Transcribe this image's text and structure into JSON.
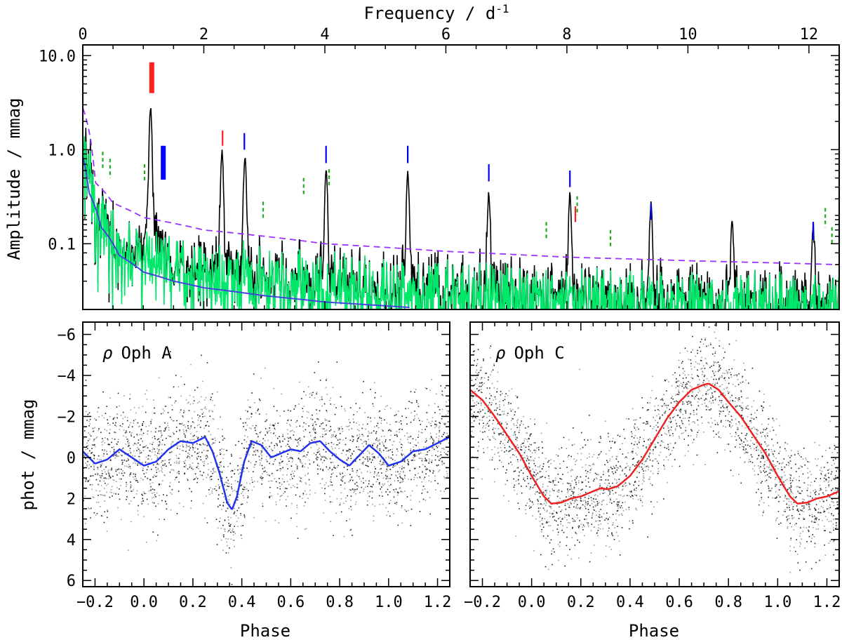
{
  "chart_data": [
    {
      "type": "line",
      "panel": "amplitude-spectrum",
      "xlabel": "Frequency / d",
      "xlabel_sup": "-1",
      "ylabel": "Amplitude / mmag",
      "xlim": [
        0,
        12.5
      ],
      "ylim": [
        0.02,
        13
      ],
      "yscale": "log",
      "x_ticks": [
        0,
        2,
        4,
        6,
        8,
        10,
        12
      ],
      "y_tick_labels": [
        {
          "value": 10,
          "label": "10.0"
        },
        {
          "value": 1,
          "label": "1.0"
        },
        {
          "value": 0.1,
          "label": "0.1"
        }
      ],
      "peaks": [
        {
          "f": 1.12,
          "a": 2.6
        },
        {
          "f": 2.3,
          "a": 0.88
        },
        {
          "f": 2.68,
          "a": 0.75
        },
        {
          "f": 4.02,
          "a": 0.55
        },
        {
          "f": 5.37,
          "a": 0.52
        },
        {
          "f": 6.71,
          "a": 0.3
        },
        {
          "f": 8.05,
          "a": 0.29
        },
        {
          "f": 9.39,
          "a": 0.22
        },
        {
          "f": 10.73,
          "a": 0.15
        },
        {
          "f": 12.07,
          "a": 0.12
        }
      ],
      "series": [
        {
          "name": "spectrum",
          "color": "#000000"
        },
        {
          "name": "residual spectrum",
          "color": "#00e86a"
        },
        {
          "name": "significance threshold",
          "color": "#9933ff",
          "style": "dashed",
          "x": [
            0,
            0.2,
            0.5,
            1.0,
            2.0,
            4.0,
            6.0,
            8.0,
            10.0,
            12.5
          ],
          "values": [
            2.8,
            0.45,
            0.27,
            0.19,
            0.14,
            0.1,
            0.083,
            0.072,
            0.066,
            0.06
          ]
        },
        {
          "name": "noise level",
          "color": "#4444dd",
          "style": "solid",
          "x": [
            0,
            0.1,
            0.3,
            0.6,
            1.0,
            1.5,
            2.0,
            3.0,
            4.0,
            5.4
          ],
          "values": [
            0.85,
            0.35,
            0.15,
            0.075,
            0.05,
            0.04,
            0.034,
            0.028,
            0.024,
            0.021
          ]
        }
      ],
      "markers": [
        {
          "color": "#ff2020",
          "f": 1.14,
          "a_top": 8.5,
          "a_bot": 4.0,
          "thick": true
        },
        {
          "color": "#0000ff",
          "f": 1.33,
          "a_top": 1.1,
          "a_bot": 0.48,
          "thick": true
        },
        {
          "color": "#ff2020",
          "f": 2.31,
          "a_top": 1.6,
          "a_bot": 1.1
        },
        {
          "color": "#0000ff",
          "f": 2.67,
          "a_top": 1.5,
          "a_bot": 1.0
        },
        {
          "color": "#0000ff",
          "f": 4.02,
          "a_top": 1.1,
          "a_bot": 0.72
        },
        {
          "color": "#0000ff",
          "f": 5.37,
          "a_top": 1.1,
          "a_bot": 0.72
        },
        {
          "color": "#0000ff",
          "f": 6.71,
          "a_top": 0.7,
          "a_bot": 0.46
        },
        {
          "color": "#0000ff",
          "f": 8.05,
          "a_top": 0.6,
          "a_bot": 0.4
        },
        {
          "color": "#0000ff",
          "f": 9.39,
          "a_top": 0.27,
          "a_bot": 0.18
        },
        {
          "color": "#0000ff",
          "f": 12.07,
          "a_top": 0.17,
          "a_bot": 0.11
        },
        {
          "color": "#ff2020",
          "f": 8.14,
          "a_top": 0.25,
          "a_bot": 0.17
        },
        {
          "color": "#22aa22",
          "f": 0.33,
          "a_top": 0.95,
          "a_bot": 0.6,
          "dashed": true
        },
        {
          "color": "#22aa22",
          "f": 0.45,
          "a_top": 0.8,
          "a_bot": 0.5,
          "dashed": true
        },
        {
          "color": "#22aa22",
          "f": 1.02,
          "a_top": 0.7,
          "a_bot": 0.45,
          "dashed": true
        },
        {
          "color": "#22aa22",
          "f": 2.98,
          "a_top": 0.28,
          "a_bot": 0.18,
          "dashed": true
        },
        {
          "color": "#22aa22",
          "f": 3.65,
          "a_top": 0.5,
          "a_bot": 0.32,
          "dashed": true
        },
        {
          "color": "#22aa22",
          "f": 4.07,
          "a_top": 0.62,
          "a_bot": 0.4,
          "dashed": true
        },
        {
          "color": "#22aa22",
          "f": 7.66,
          "a_top": 0.17,
          "a_bot": 0.11,
          "dashed": true
        },
        {
          "color": "#22aa22",
          "f": 8.17,
          "a_top": 0.32,
          "a_bot": 0.2,
          "dashed": true
        },
        {
          "color": "#22aa22",
          "f": 8.72,
          "a_top": 0.14,
          "a_bot": 0.09,
          "dashed": true
        },
        {
          "color": "#22aa22",
          "f": 12.27,
          "a_top": 0.24,
          "a_bot": 0.15,
          "dashed": true
        },
        {
          "color": "#22aa22",
          "f": 12.38,
          "a_top": 0.15,
          "a_bot": 0.1,
          "dashed": true
        }
      ]
    },
    {
      "type": "scatter",
      "panel": "phased-light-curve-A",
      "title": "ρ Oph A",
      "title_rho": "ρ",
      "title_rest": "Oph A",
      "xlabel": "Phase",
      "ylabel": "phot / mmag",
      "xlim": [
        -0.25,
        1.25
      ],
      "ylim": [
        6.3,
        -6.6
      ],
      "x_ticks": [
        -0.2,
        0.0,
        0.2,
        0.4,
        0.6,
        0.8,
        1.0,
        1.2
      ],
      "x_tick_labels": [
        "−0.2",
        "0.0",
        "0.2",
        "0.4",
        "0.6",
        "0.8",
        "1.0",
        "1.2"
      ],
      "y_ticks": [
        -6,
        -4,
        -2,
        0,
        2,
        4,
        6
      ],
      "y_tick_labels": [
        "−6",
        "−4",
        "−2",
        "0",
        "2",
        "4",
        "6"
      ],
      "fit_color": "#2233ee",
      "fit_x": [
        -0.25,
        -0.2,
        -0.15,
        -0.1,
        -0.05,
        0.0,
        0.05,
        0.1,
        0.15,
        0.2,
        0.25,
        0.28,
        0.31,
        0.34,
        0.36,
        0.38,
        0.41,
        0.44,
        0.48,
        0.52,
        0.56,
        0.6,
        0.64,
        0.68,
        0.72,
        0.76,
        0.8,
        0.84,
        0.88,
        0.92,
        0.96,
        1.0,
        1.05,
        1.1,
        1.15,
        1.2,
        1.25
      ],
      "fit_y": [
        -0.3,
        0.3,
        0.1,
        -0.4,
        0.0,
        0.4,
        0.2,
        -0.4,
        -0.8,
        -0.7,
        -1.0,
        -0.3,
        0.8,
        2.2,
        2.55,
        1.9,
        0.2,
        -0.8,
        -0.6,
        0.0,
        -0.2,
        -0.4,
        -0.3,
        -0.7,
        -0.8,
        -0.3,
        0.1,
        0.4,
        -0.1,
        -0.6,
        -0.2,
        0.4,
        0.2,
        -0.3,
        -0.4,
        -0.7,
        -1.0
      ],
      "scatter_sigma": 1.4
    },
    {
      "type": "scatter",
      "panel": "phased-light-curve-C",
      "title": "ρ Oph C",
      "title_rho": "ρ",
      "title_rest": "Oph C",
      "xlabel": "Phase",
      "ylabel": "",
      "xlim": [
        -0.25,
        1.25
      ],
      "ylim": [
        6.3,
        -6.6
      ],
      "x_ticks": [
        -0.2,
        0.0,
        0.2,
        0.4,
        0.6,
        0.8,
        1.0,
        1.2
      ],
      "x_tick_labels": [
        "−0.2",
        "0.0",
        "0.2",
        "0.4",
        "0.6",
        "0.8",
        "1.0",
        "1.2"
      ],
      "fit_color": "#ee2222",
      "fit_x": [
        -0.25,
        -0.2,
        -0.15,
        -0.1,
        -0.05,
        0.0,
        0.05,
        0.08,
        0.12,
        0.16,
        0.2,
        0.25,
        0.28,
        0.31,
        0.35,
        0.4,
        0.45,
        0.5,
        0.55,
        0.6,
        0.65,
        0.7,
        0.72,
        0.76,
        0.8,
        0.85,
        0.9,
        0.95,
        1.0,
        1.05,
        1.08,
        1.12,
        1.16,
        1.2,
        1.25
      ],
      "fit_y": [
        -3.3,
        -2.8,
        -2.0,
        -1.1,
        -0.2,
        0.9,
        1.9,
        2.25,
        2.2,
        2.0,
        1.9,
        1.65,
        1.5,
        1.55,
        1.4,
        0.9,
        0.1,
        -0.9,
        -1.9,
        -2.7,
        -3.3,
        -3.55,
        -3.6,
        -3.3,
        -2.7,
        -2.0,
        -1.1,
        -0.2,
        0.9,
        1.9,
        2.25,
        2.2,
        2.0,
        1.9,
        1.65
      ],
      "scatter_sigma": 1.3
    }
  ]
}
